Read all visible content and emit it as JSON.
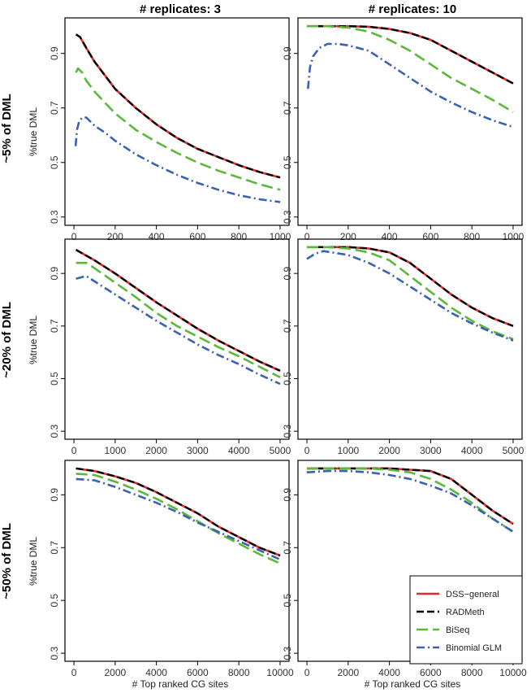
{
  "figure": {
    "col_titles": [
      "# replicates: 3",
      "# replicates: 10"
    ],
    "row_titles": [
      "~5% of DML",
      "~20% of DML",
      "~50% of DML"
    ],
    "ylabel": "%true DML",
    "xlabel": "# Top ranked CG sites"
  },
  "legend": {
    "entries": [
      {
        "name": "DSS−general",
        "color": "#e8262c",
        "dash": "solid"
      },
      {
        "name": "RADMeth",
        "color": "#000000",
        "dash": "dash"
      },
      {
        "name": "BiSeq",
        "color": "#5cb83a",
        "dash": "longdash"
      },
      {
        "name": "Binomial GLM",
        "color": "#3a62b0",
        "dash": "dotdash"
      }
    ]
  },
  "chart_data": [
    {
      "type": "line",
      "row": 0,
      "col": 0,
      "title": "# replicates: 3",
      "ylabel": "%true DML",
      "xlabel": "",
      "xlim": [
        0,
        1000
      ],
      "ylim": [
        0.3,
        1.0
      ],
      "xticks": [
        "0",
        "200",
        "400",
        "600",
        "800",
        "1000"
      ],
      "yticks": [
        "0.3",
        "0.5",
        "0.7",
        "0.9"
      ],
      "series": [
        {
          "name": "DSS−general",
          "x": [
            10,
            30,
            60,
            100,
            150,
            200,
            300,
            400,
            500,
            600,
            700,
            800,
            900,
            1000
          ],
          "values": [
            0.97,
            0.96,
            0.92,
            0.87,
            0.82,
            0.77,
            0.7,
            0.64,
            0.59,
            0.55,
            0.52,
            0.49,
            0.465,
            0.445
          ]
        },
        {
          "name": "RADMeth",
          "x": [
            10,
            30,
            60,
            100,
            150,
            200,
            300,
            400,
            500,
            600,
            700,
            800,
            900,
            1000
          ],
          "values": [
            0.97,
            0.96,
            0.92,
            0.87,
            0.82,
            0.77,
            0.7,
            0.64,
            0.59,
            0.55,
            0.52,
            0.49,
            0.465,
            0.445
          ]
        },
        {
          "name": "BiSeq",
          "x": [
            10,
            20,
            40,
            60,
            100,
            150,
            200,
            300,
            400,
            500,
            600,
            700,
            800,
            900,
            1000
          ],
          "values": [
            0.83,
            0.845,
            0.83,
            0.8,
            0.76,
            0.72,
            0.68,
            0.62,
            0.575,
            0.535,
            0.5,
            0.47,
            0.445,
            0.42,
            0.4
          ]
        },
        {
          "name": "Binomial GLM",
          "x": [
            8,
            15,
            25,
            40,
            60,
            80,
            100,
            150,
            200,
            300,
            400,
            500,
            600,
            700,
            800,
            900,
            1000
          ],
          "values": [
            0.56,
            0.62,
            0.65,
            0.665,
            0.665,
            0.65,
            0.635,
            0.61,
            0.58,
            0.53,
            0.49,
            0.455,
            0.425,
            0.4,
            0.38,
            0.365,
            0.355
          ]
        }
      ]
    },
    {
      "type": "line",
      "row": 0,
      "col": 1,
      "title": "# replicates: 10",
      "ylabel": "",
      "xlabel": "",
      "xlim": [
        0,
        1000
      ],
      "ylim": [
        0.3,
        1.0
      ],
      "xticks": [
        "0",
        "200",
        "400",
        "600",
        "800",
        "1000"
      ],
      "yticks": [
        "0.3",
        "0.5",
        "0.7",
        "0.9"
      ],
      "series": [
        {
          "name": "DSS−general",
          "x": [
            0,
            100,
            200,
            300,
            400,
            500,
            600,
            700,
            800,
            900,
            1000
          ],
          "values": [
            1.0,
            1.0,
            1.0,
            0.998,
            0.99,
            0.975,
            0.95,
            0.91,
            0.87,
            0.83,
            0.79
          ]
        },
        {
          "name": "RADMeth",
          "x": [
            0,
            100,
            200,
            300,
            400,
            500,
            600,
            700,
            800,
            900,
            1000
          ],
          "values": [
            1.0,
            1.0,
            1.0,
            0.998,
            0.99,
            0.975,
            0.95,
            0.91,
            0.87,
            0.83,
            0.79
          ]
        },
        {
          "name": "BiSeq",
          "x": [
            0,
            100,
            200,
            300,
            400,
            500,
            600,
            700,
            800,
            900,
            1000
          ],
          "values": [
            1.0,
            1.0,
            0.995,
            0.98,
            0.95,
            0.91,
            0.86,
            0.81,
            0.77,
            0.73,
            0.685
          ]
        },
        {
          "name": "Binomial GLM",
          "x": [
            5,
            15,
            30,
            60,
            100,
            150,
            200,
            300,
            400,
            500,
            600,
            700,
            800,
            900,
            1000
          ],
          "values": [
            0.77,
            0.85,
            0.89,
            0.92,
            0.935,
            0.935,
            0.93,
            0.91,
            0.86,
            0.81,
            0.76,
            0.72,
            0.685,
            0.655,
            0.63
          ]
        }
      ]
    },
    {
      "type": "line",
      "row": 1,
      "col": 0,
      "title": "",
      "ylabel": "%true DML",
      "xlabel": "",
      "xlim": [
        0,
        5000
      ],
      "ylim": [
        0.3,
        1.0
      ],
      "xticks": [
        "0",
        "1000",
        "2000",
        "3000",
        "4000",
        "5000"
      ],
      "yticks": [
        "0.3",
        "0.5",
        "0.7",
        "0.9"
      ],
      "series": [
        {
          "name": "DSS−general",
          "x": [
            50,
            500,
            1000,
            1500,
            2000,
            2500,
            3000,
            3500,
            4000,
            4500,
            5000
          ],
          "values": [
            0.99,
            0.95,
            0.9,
            0.845,
            0.79,
            0.74,
            0.69,
            0.645,
            0.605,
            0.565,
            0.53
          ]
        },
        {
          "name": "RADMeth",
          "x": [
            50,
            500,
            1000,
            1500,
            2000,
            2500,
            3000,
            3500,
            4000,
            4500,
            5000
          ],
          "values": [
            0.99,
            0.95,
            0.9,
            0.845,
            0.79,
            0.74,
            0.69,
            0.645,
            0.605,
            0.565,
            0.53
          ]
        },
        {
          "name": "BiSeq",
          "x": [
            50,
            300,
            500,
            1000,
            1500,
            2000,
            2500,
            3000,
            3500,
            4000,
            4500,
            5000
          ],
          "values": [
            0.94,
            0.94,
            0.92,
            0.865,
            0.81,
            0.75,
            0.7,
            0.66,
            0.62,
            0.585,
            0.545,
            0.505
          ]
        },
        {
          "name": "Binomial GLM",
          "x": [
            50,
            300,
            500,
            1000,
            1500,
            2000,
            2500,
            3000,
            3500,
            4000,
            4500,
            5000
          ],
          "values": [
            0.88,
            0.89,
            0.87,
            0.82,
            0.77,
            0.72,
            0.675,
            0.63,
            0.59,
            0.555,
            0.515,
            0.48
          ]
        }
      ]
    },
    {
      "type": "line",
      "row": 1,
      "col": 1,
      "title": "",
      "ylabel": "",
      "xlabel": "",
      "xlim": [
        0,
        5000
      ],
      "ylim": [
        0.3,
        1.0
      ],
      "xticks": [
        "0",
        "1000",
        "2000",
        "3000",
        "4000",
        "5000"
      ],
      "yticks": [
        "0.3",
        "0.5",
        "0.7",
        "0.9"
      ],
      "series": [
        {
          "name": "DSS−general",
          "x": [
            0,
            500,
            1000,
            1500,
            2000,
            2500,
            3000,
            3500,
            4000,
            4500,
            5000
          ],
          "values": [
            1.0,
            1.0,
            1.0,
            0.995,
            0.98,
            0.94,
            0.88,
            0.82,
            0.77,
            0.73,
            0.7
          ]
        },
        {
          "name": "RADMeth",
          "x": [
            0,
            500,
            1000,
            1500,
            2000,
            2500,
            3000,
            3500,
            4000,
            4500,
            5000
          ],
          "values": [
            1.0,
            1.0,
            1.0,
            0.995,
            0.98,
            0.94,
            0.88,
            0.82,
            0.77,
            0.73,
            0.7
          ]
        },
        {
          "name": "BiSeq",
          "x": [
            0,
            500,
            1000,
            1500,
            2000,
            2500,
            3000,
            3500,
            4000,
            4500,
            5000
          ],
          "values": [
            1.0,
            1.0,
            0.995,
            0.98,
            0.95,
            0.89,
            0.83,
            0.77,
            0.72,
            0.68,
            0.65
          ]
        },
        {
          "name": "Binomial GLM",
          "x": [
            0,
            200,
            400,
            1000,
            1500,
            2000,
            2500,
            3000,
            3500,
            4000,
            4500,
            5000
          ],
          "values": [
            0.955,
            0.975,
            0.985,
            0.97,
            0.94,
            0.9,
            0.85,
            0.8,
            0.75,
            0.71,
            0.675,
            0.645
          ]
        }
      ]
    },
    {
      "type": "line",
      "row": 2,
      "col": 0,
      "title": "",
      "ylabel": "%true DML",
      "xlabel": "# Top ranked CG sites",
      "xlim": [
        0,
        10000
      ],
      "ylim": [
        0.3,
        1.0
      ],
      "xticks": [
        "0",
        "2000",
        "4000",
        "6000",
        "8000",
        "10000"
      ],
      "yticks": [
        "0.3",
        "0.5",
        "0.7",
        "0.9"
      ],
      "series": [
        {
          "name": "DSS−general",
          "x": [
            100,
            1000,
            2000,
            3000,
            4000,
            5000,
            6000,
            7000,
            8000,
            9000,
            10000
          ],
          "values": [
            1.0,
            0.99,
            0.97,
            0.945,
            0.91,
            0.87,
            0.83,
            0.78,
            0.74,
            0.7,
            0.67
          ]
        },
        {
          "name": "RADMeth",
          "x": [
            100,
            1000,
            2000,
            3000,
            4000,
            5000,
            6000,
            7000,
            8000,
            9000,
            10000
          ],
          "values": [
            1.0,
            0.99,
            0.97,
            0.945,
            0.91,
            0.87,
            0.83,
            0.78,
            0.74,
            0.7,
            0.67
          ]
        },
        {
          "name": "BiSeq",
          "x": [
            100,
            1000,
            2000,
            3000,
            4000,
            5000,
            6000,
            7000,
            8000,
            9000,
            10000
          ],
          "values": [
            0.98,
            0.975,
            0.95,
            0.92,
            0.885,
            0.845,
            0.8,
            0.755,
            0.715,
            0.675,
            0.64
          ]
        },
        {
          "name": "Binomial GLM",
          "x": [
            100,
            1000,
            2000,
            3000,
            4000,
            5000,
            6000,
            7000,
            8000,
            9000,
            10000
          ],
          "values": [
            0.96,
            0.955,
            0.93,
            0.9,
            0.87,
            0.835,
            0.795,
            0.76,
            0.725,
            0.69,
            0.655
          ]
        }
      ]
    },
    {
      "type": "line",
      "row": 2,
      "col": 1,
      "title": "",
      "ylabel": "",
      "xlabel": "# Top ranked CG sites",
      "xlim": [
        0,
        10000
      ],
      "ylim": [
        0.3,
        1.0
      ],
      "xticks": [
        "0",
        "2000",
        "4000",
        "6000",
        "8000",
        "10000"
      ],
      "yticks": [
        "0.3",
        "0.5",
        "0.7",
        "0.9"
      ],
      "series": [
        {
          "name": "DSS−general",
          "x": [
            0,
            1000,
            2000,
            3000,
            4000,
            5000,
            6000,
            7000,
            8000,
            9000,
            10000
          ],
          "values": [
            1.0,
            1.0,
            1.0,
            1.0,
            1.0,
            0.995,
            0.99,
            0.96,
            0.9,
            0.84,
            0.79
          ]
        },
        {
          "name": "RADMeth",
          "x": [
            0,
            1000,
            2000,
            3000,
            4000,
            5000,
            6000,
            7000,
            8000,
            9000,
            10000
          ],
          "values": [
            1.0,
            1.0,
            1.0,
            1.0,
            1.0,
            0.995,
            0.99,
            0.96,
            0.9,
            0.84,
            0.79
          ]
        },
        {
          "name": "BiSeq",
          "x": [
            0,
            1000,
            2000,
            3000,
            4000,
            5000,
            6000,
            7000,
            8000,
            9000,
            10000
          ],
          "values": [
            1.0,
            1.0,
            1.0,
            1.0,
            0.995,
            0.985,
            0.96,
            0.92,
            0.87,
            0.81,
            0.76
          ]
        },
        {
          "name": "Binomial GLM",
          "x": [
            0,
            1000,
            2000,
            3000,
            4000,
            5000,
            6000,
            7000,
            8000,
            9000,
            10000
          ],
          "values": [
            0.985,
            0.99,
            0.99,
            0.985,
            0.975,
            0.96,
            0.935,
            0.905,
            0.86,
            0.81,
            0.76
          ]
        }
      ]
    }
  ]
}
